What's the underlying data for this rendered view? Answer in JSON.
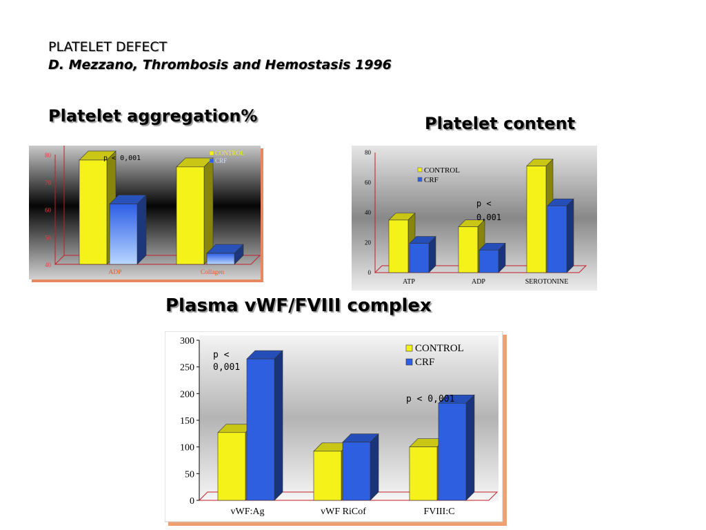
{
  "header": {
    "title": "PLATELET DEFECT",
    "citation": "D. Mezzano, Thrombosis and Hemostasis 1996"
  },
  "sections": {
    "aggregation": "Platelet aggregation%",
    "content": "Platelet content",
    "plasma": "Plasma vWF/FVIII complex"
  },
  "colors": {
    "control": "#f5f21a",
    "crf": "#2e5fe0",
    "tick_red": "#c0202a",
    "tick_dark": "#000000"
  },
  "chart_data": [
    {
      "type": "bar",
      "categories": [
        "ADP",
        "Collagen"
      ],
      "series": [
        {
          "name": "CONTROL",
          "values": [
            78,
            75.5
          ]
        },
        {
          "name": "CRF",
          "values": [
            62,
            44
          ]
        }
      ],
      "ylim": [
        40,
        80
      ],
      "yticks": [
        "80",
        "70",
        "60",
        "50",
        "40"
      ],
      "legend_placement": "top-right",
      "annotations": [
        "p < 0,001"
      ],
      "background": "dark-gradient"
    },
    {
      "type": "bar",
      "categories": [
        "ATP",
        "ADP",
        "SEROTONINE"
      ],
      "series": [
        {
          "name": "CONTROL",
          "values": [
            35,
            30.5,
            71
          ]
        },
        {
          "name": "CRF",
          "values": [
            19.5,
            15,
            44.5
          ]
        }
      ],
      "ylim": [
        0,
        80
      ],
      "yticks": [
        "80",
        "60",
        "40",
        "20",
        "0"
      ],
      "legend_placement": "top-left",
      "annotations": [
        "p <",
        "0,001"
      ],
      "background": "grey-gradient"
    },
    {
      "type": "bar",
      "categories": [
        "vWF:Ag",
        "vWF RiCof",
        "FVIII:C"
      ],
      "series": [
        {
          "name": "CONTROL",
          "values": [
            127,
            92,
            100
          ]
        },
        {
          "name": "CRF",
          "values": [
            265,
            109,
            182
          ]
        }
      ],
      "ylim": [
        0,
        300
      ],
      "yticks": [
        "300",
        "250",
        "200",
        "150",
        "100",
        "50",
        "0"
      ],
      "legend_placement": "top-right",
      "annotations": [
        "p <",
        "0,001",
        "p < 0,001"
      ],
      "background": "light-grey-gradient"
    }
  ]
}
